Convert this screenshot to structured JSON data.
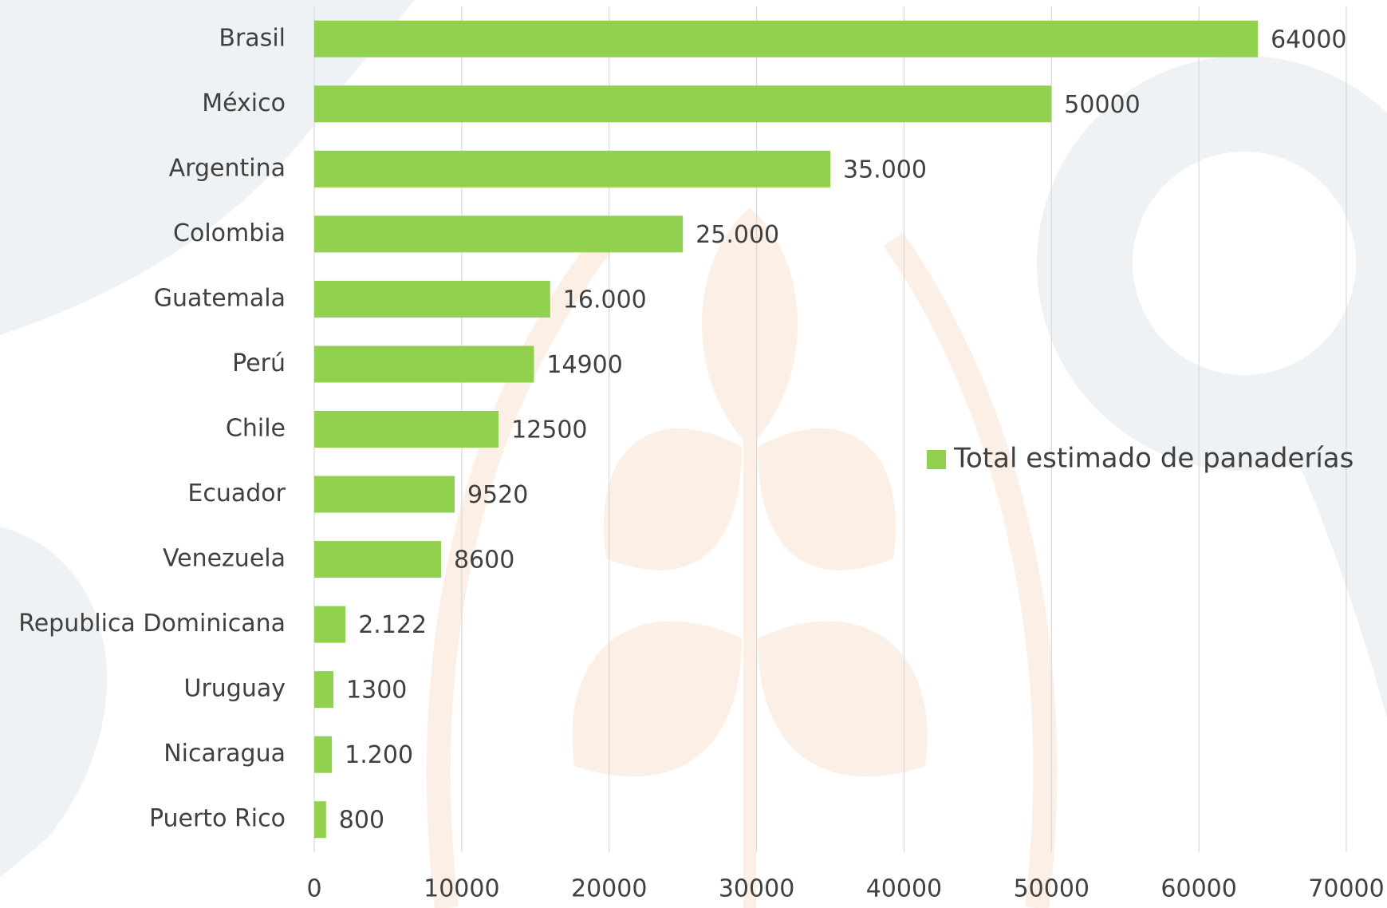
{
  "chart_data": {
    "type": "bar",
    "orientation": "horizontal",
    "categories": [
      "Brasil",
      "México",
      "Argentina",
      "Colombia",
      "Guatemala",
      "Perú",
      "Chile",
      "Ecuador",
      "Venezuela",
      "Republica Dominicana",
      "Uruguay",
      "Nicaragua",
      "Puerto Rico"
    ],
    "series": [
      {
        "name": "Total estimado de panaderías",
        "color": "#92d050",
        "values": [
          64000,
          50000,
          35000,
          25000,
          16000,
          14900,
          12500,
          9520,
          8600,
          2122,
          1300,
          1200,
          800
        ],
        "value_labels": [
          "64000",
          "50000",
          "35.000",
          "25.000",
          "16.000",
          "14900",
          "12500",
          "9520",
          "8600",
          "2.122",
          "1300",
          "1.200",
          "800"
        ]
      }
    ],
    "xlim": [
      0,
      70000
    ],
    "xticks": [
      0,
      10000,
      20000,
      30000,
      40000,
      50000,
      60000,
      70000
    ],
    "grid": true,
    "legend": "right"
  }
}
